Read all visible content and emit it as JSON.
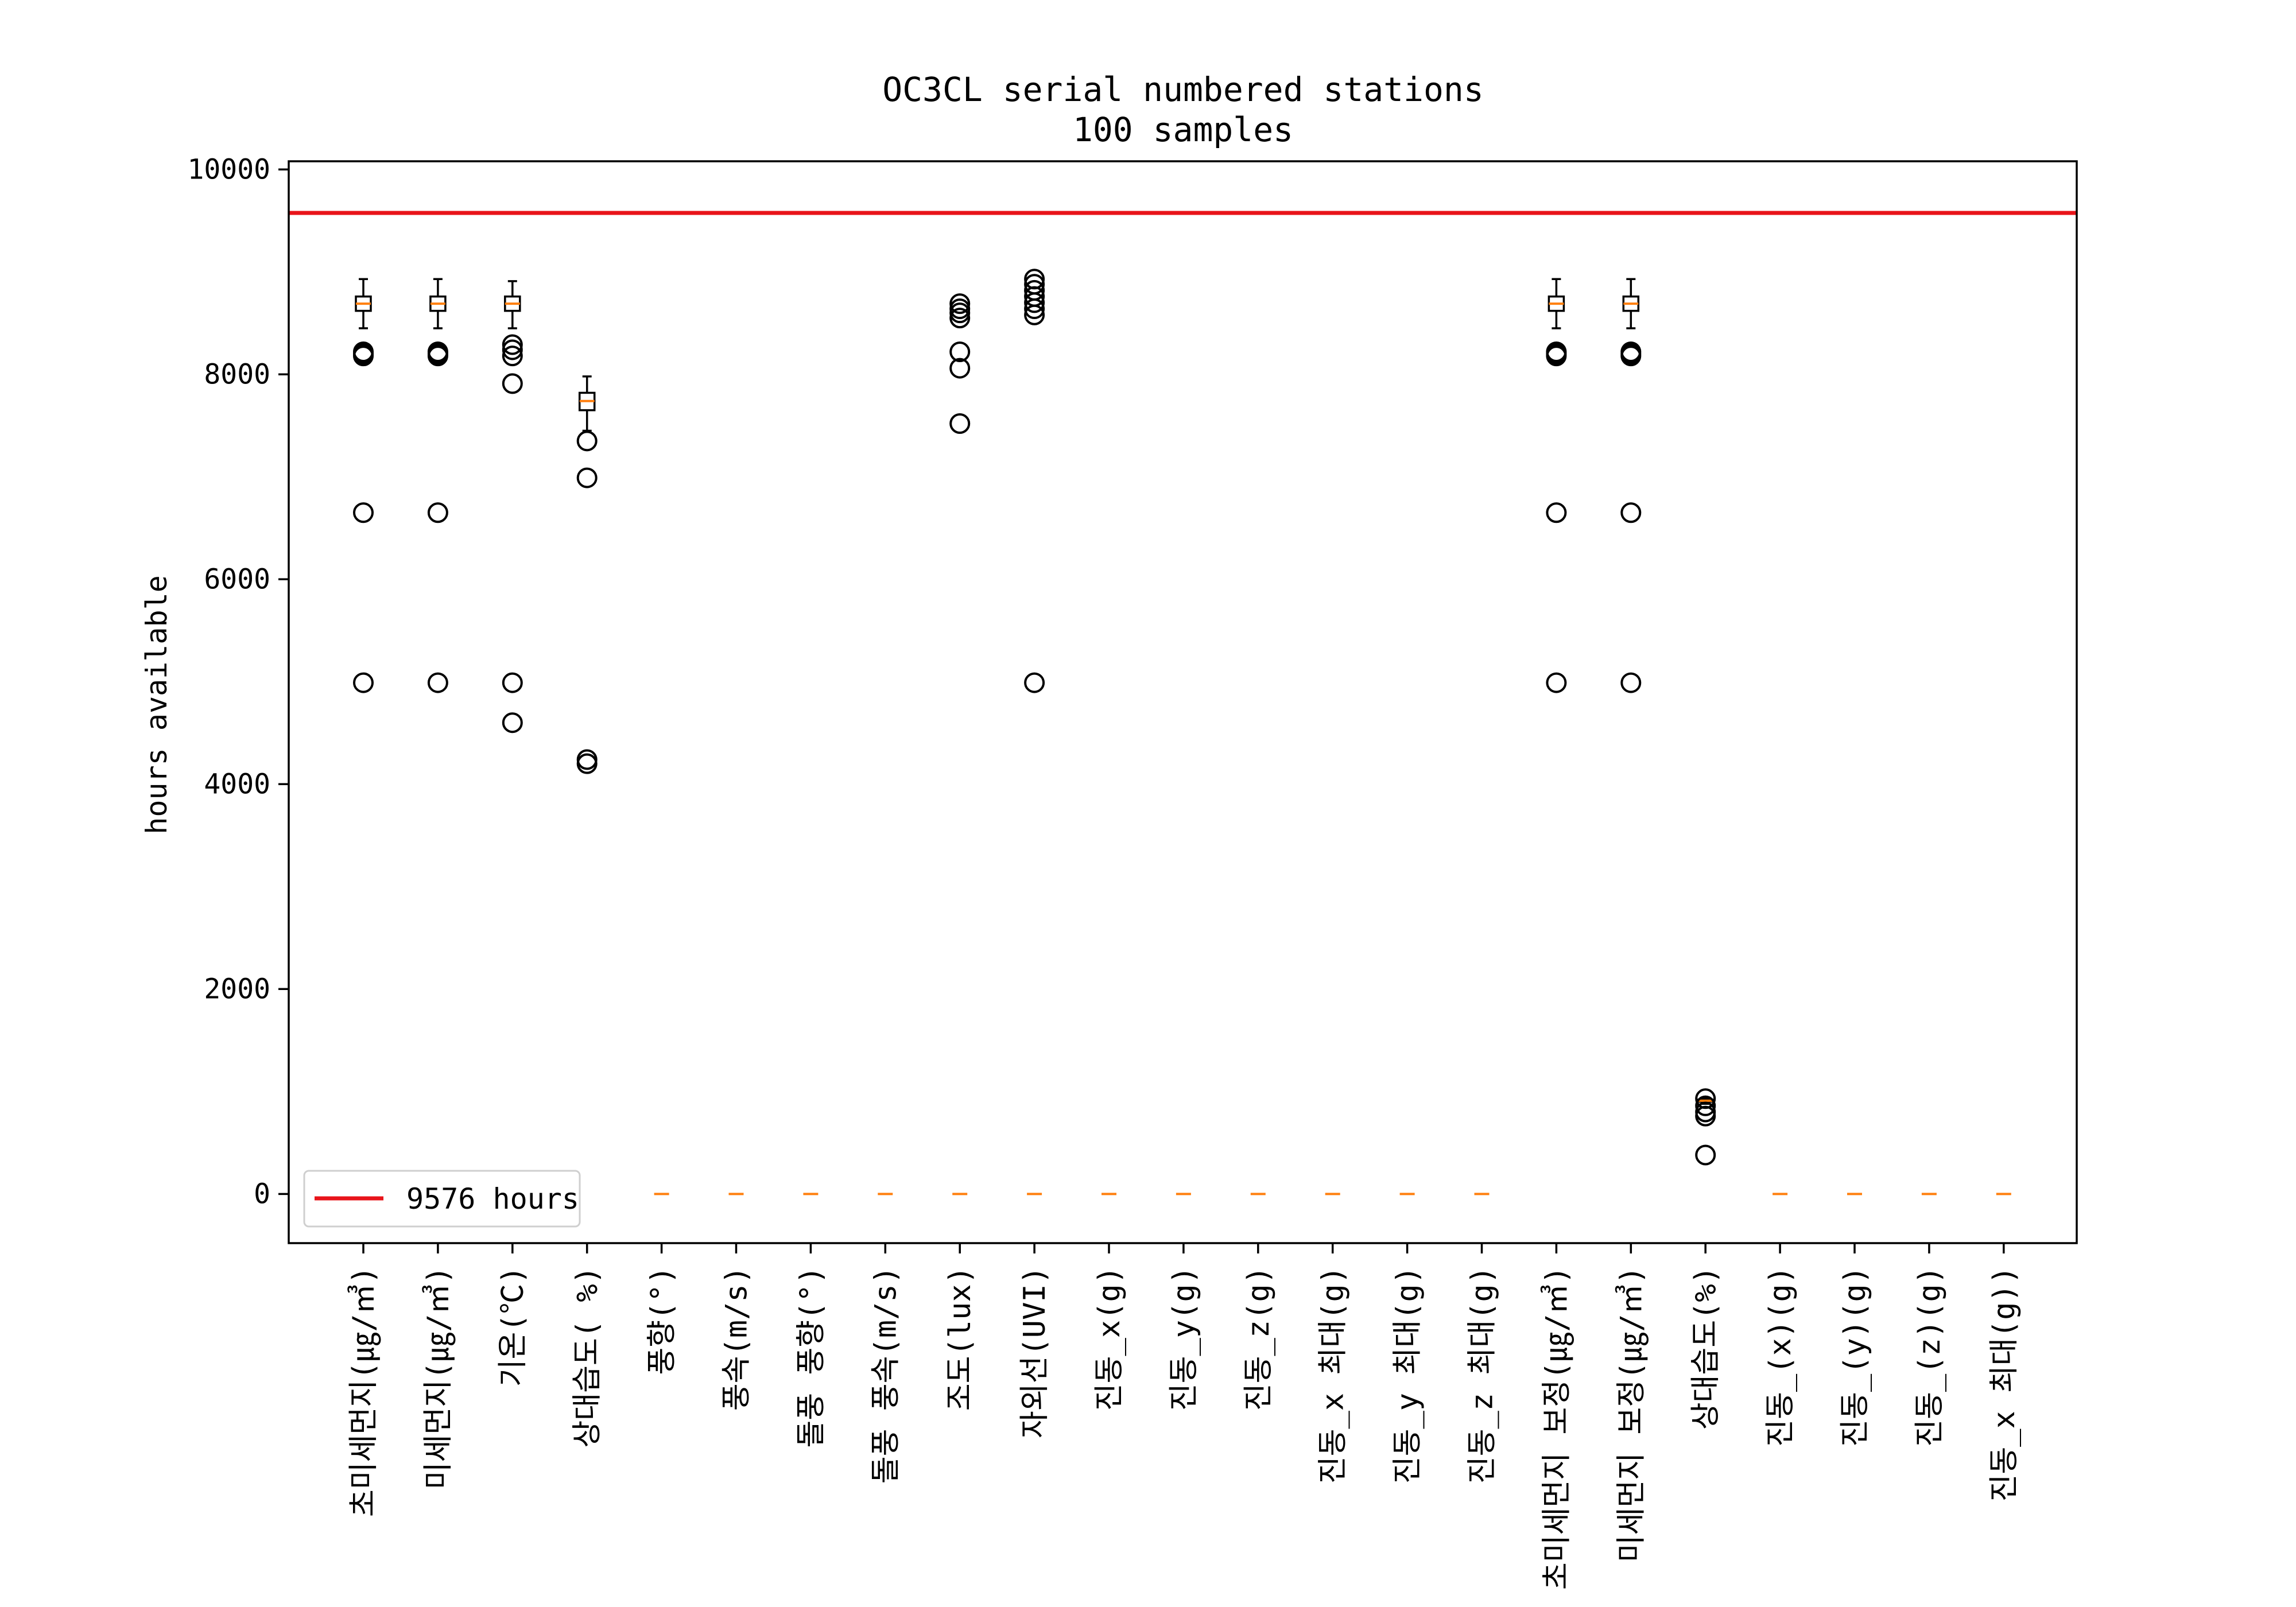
{
  "chart_data": {
    "type": "box",
    "title": "OC3CL serial numbered stations",
    "subtitle": "100 samples",
    "ylabel": "hours available",
    "xlabel": "",
    "ylim": [
      -480,
      10080
    ],
    "yticks": [
      0,
      2000,
      4000,
      6000,
      8000,
      10000
    ],
    "grid": false,
    "reference_line": {
      "value": 9576,
      "label": "9576 hours",
      "color": "#e8141a"
    },
    "legend_position": "lower-left",
    "categories": [
      "초미세먼지(㎍/㎥)",
      "미세먼지(㎍/㎥)",
      "기온(℃)",
      "상대습도( %)",
      "풍향(°)",
      "풍속(m/s)",
      "돌풍 풍향(°)",
      "돌풍 풍속(m/s)",
      "조도(lux)",
      "자외선(UVI)",
      "진동_x(g)",
      "진동_y(g)",
      "진동_z(g)",
      "진동_x 최대(g)",
      "진동_y 최대(g)",
      "진동_z 최대(g)",
      "초미세먼지 보정(㎍/㎥)",
      "미세먼지 보정(㎍/㎥)",
      "상대습도(%)",
      "진동_(x)(g)",
      "진동_(y)(g)",
      "진동_(z)(g)",
      "진동_x 최대(g))"
    ],
    "boxes": [
      {
        "whislo": 8450,
        "q1": 8620,
        "med": 8690,
        "q3": 8760,
        "whishi": 8930,
        "fliers": [
          8220,
          8200,
          8180,
          6650,
          4990
        ]
      },
      {
        "whislo": 8450,
        "q1": 8620,
        "med": 8690,
        "q3": 8760,
        "whishi": 8930,
        "fliers": [
          8220,
          8200,
          8180,
          6650,
          4990
        ]
      },
      {
        "whislo": 8450,
        "q1": 8620,
        "med": 8690,
        "q3": 8760,
        "whishi": 8910,
        "fliers": [
          8290,
          8240,
          8180,
          7910,
          4990,
          4600
        ]
      },
      {
        "whislo": 7450,
        "q1": 7650,
        "med": 7740,
        "q3": 7820,
        "whishi": 7980,
        "fliers": [
          7350,
          6990,
          4240,
          4200
        ]
      },
      {
        "whislo": 0,
        "q1": 0,
        "med": 0,
        "q3": 0,
        "whishi": 0,
        "fliers": []
      },
      {
        "whislo": 0,
        "q1": 0,
        "med": 0,
        "q3": 0,
        "whishi": 0,
        "fliers": []
      },
      {
        "whislo": 0,
        "q1": 0,
        "med": 0,
        "q3": 0,
        "whishi": 0,
        "fliers": []
      },
      {
        "whislo": 0,
        "q1": 0,
        "med": 0,
        "q3": 0,
        "whishi": 0,
        "fliers": []
      },
      {
        "whislo": 0,
        "q1": 0,
        "med": 0,
        "q3": 0,
        "whishi": 0,
        "fliers": [
          8690,
          8640,
          8600,
          8550,
          8220,
          8060,
          7520
        ]
      },
      {
        "whislo": 0,
        "q1": 0,
        "med": 0,
        "q3": 0,
        "whishi": 0,
        "fliers": [
          8930,
          8880,
          8820,
          8760,
          8700,
          8640,
          8580,
          4990
        ]
      },
      {
        "whislo": 0,
        "q1": 0,
        "med": 0,
        "q3": 0,
        "whishi": 0,
        "fliers": []
      },
      {
        "whislo": 0,
        "q1": 0,
        "med": 0,
        "q3": 0,
        "whishi": 0,
        "fliers": []
      },
      {
        "whislo": 0,
        "q1": 0,
        "med": 0,
        "q3": 0,
        "whishi": 0,
        "fliers": []
      },
      {
        "whislo": 0,
        "q1": 0,
        "med": 0,
        "q3": 0,
        "whishi": 0,
        "fliers": []
      },
      {
        "whislo": 0,
        "q1": 0,
        "med": 0,
        "q3": 0,
        "whishi": 0,
        "fliers": []
      },
      {
        "whislo": 0,
        "q1": 0,
        "med": 0,
        "q3": 0,
        "whishi": 0,
        "fliers": []
      },
      {
        "whislo": 8450,
        "q1": 8620,
        "med": 8690,
        "q3": 8760,
        "whishi": 8930,
        "fliers": [
          8220,
          8200,
          8180,
          6650,
          4990
        ]
      },
      {
        "whislo": 8450,
        "q1": 8620,
        "med": 8690,
        "q3": 8760,
        "whishi": 8930,
        "fliers": [
          8220,
          8200,
          8180,
          6650,
          4990
        ]
      },
      {
        "whislo": 880,
        "q1": 900,
        "med": 910,
        "q3": 920,
        "whishi": 930,
        "fliers": [
          930,
          860,
          800,
          760,
          380
        ]
      },
      {
        "whislo": 0,
        "q1": 0,
        "med": 0,
        "q3": 0,
        "whishi": 0,
        "fliers": []
      },
      {
        "whislo": 0,
        "q1": 0,
        "med": 0,
        "q3": 0,
        "whishi": 0,
        "fliers": []
      },
      {
        "whislo": 0,
        "q1": 0,
        "med": 0,
        "q3": 0,
        "whishi": 0,
        "fliers": []
      },
      {
        "whislo": 0,
        "q1": 0,
        "med": 0,
        "q3": 0,
        "whishi": 0,
        "fliers": []
      }
    ],
    "colors": {
      "box": "#000000",
      "median": "#ff7f0e",
      "flier": "#000000",
      "reference": "#e8141a"
    }
  }
}
